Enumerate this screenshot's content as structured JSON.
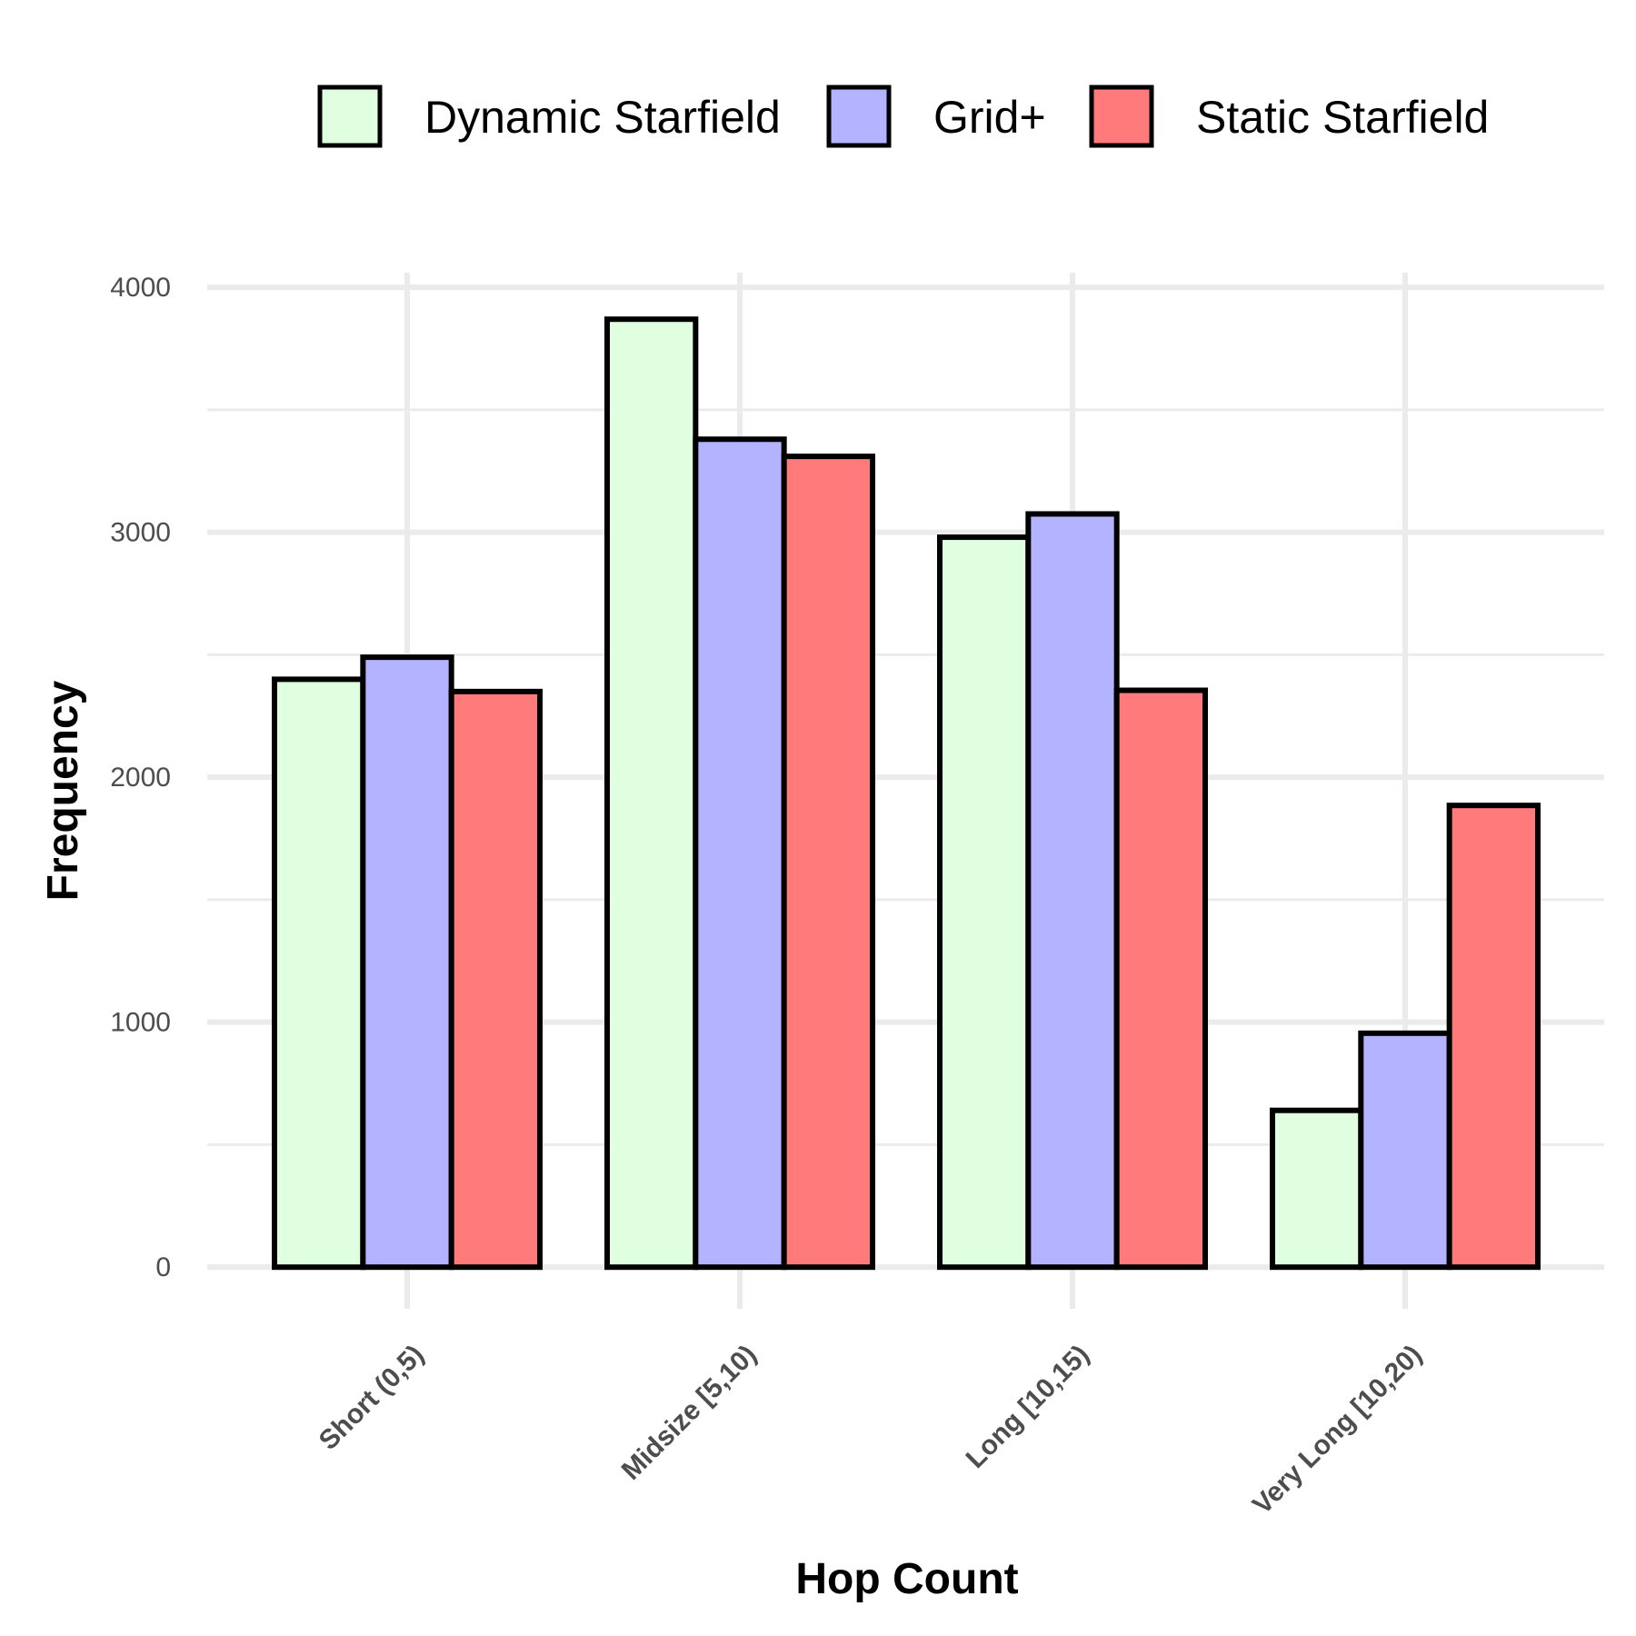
{
  "chart_data": {
    "type": "bar",
    "title": "",
    "xlabel": "Hop Count",
    "ylabel": "Frequency",
    "categories": [
      "Short (0,5)",
      "Midsize [5,10)",
      "Long [10,15)",
      "Very Long [10,20)"
    ],
    "series": [
      {
        "name": "Dynamic Starfield",
        "color": "#E0FFE0",
        "values": [
          2400,
          3870,
          2980,
          640
        ]
      },
      {
        "name": "Grid+",
        "color": "#B3B3FF",
        "values": [
          2490,
          3380,
          3075,
          955
        ]
      },
      {
        "name": "Static Starfield",
        "color": "#FF7A7A",
        "values": [
          2350,
          3310,
          2355,
          1885
        ]
      }
    ],
    "ylim": [
      -170,
      4060
    ],
    "yticks": [
      0,
      1000,
      2000,
      3000,
      4000
    ],
    "ytick_labels": [
      "0",
      "1000",
      "2000",
      "3000",
      "4000"
    ],
    "grid": true,
    "legend_position": "top"
  }
}
